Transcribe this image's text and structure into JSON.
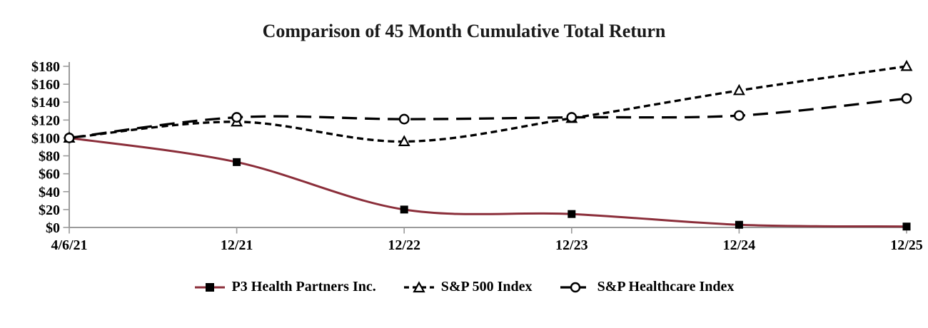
{
  "chart_data": {
    "type": "line",
    "title": "Comparison of 45 Month Cumulative Total Return",
    "categories": [
      "4/6/21",
      "12/21",
      "12/22",
      "12/23",
      "12/24",
      "12/25"
    ],
    "series": [
      {
        "name": "P3 Health Partners Inc.",
        "values": [
          100,
          73,
          20,
          15,
          3,
          1
        ],
        "color": "#8B2E3A",
        "line_style": "solid",
        "marker": "filled-square",
        "marker_color": "#000000"
      },
      {
        "name": "S&P 500 Index",
        "values": [
          100,
          118,
          96,
          122,
          153,
          180
        ],
        "color": "#000000",
        "line_style": "short-dash",
        "marker": "open-triangle",
        "marker_color": "#000000"
      },
      {
        "name": "S&P Healthcare Index",
        "values": [
          100,
          123,
          121,
          123,
          125,
          144
        ],
        "color": "#000000",
        "line_style": "long-dash",
        "marker": "open-circle",
        "marker_color": "#000000"
      }
    ],
    "xlabel": "",
    "ylabel": "",
    "ylim": [
      0,
      180
    ],
    "ytick_step": 20,
    "ytick_labels": [
      "$0",
      "$20",
      "$40",
      "$60",
      "$80",
      "$100",
      "$120",
      "$140",
      "$160",
      "$180"
    ],
    "grid": false,
    "legend_position": "bottom",
    "axis_color": "#9b9b9b",
    "marker_fill_open": "#ffffff"
  }
}
